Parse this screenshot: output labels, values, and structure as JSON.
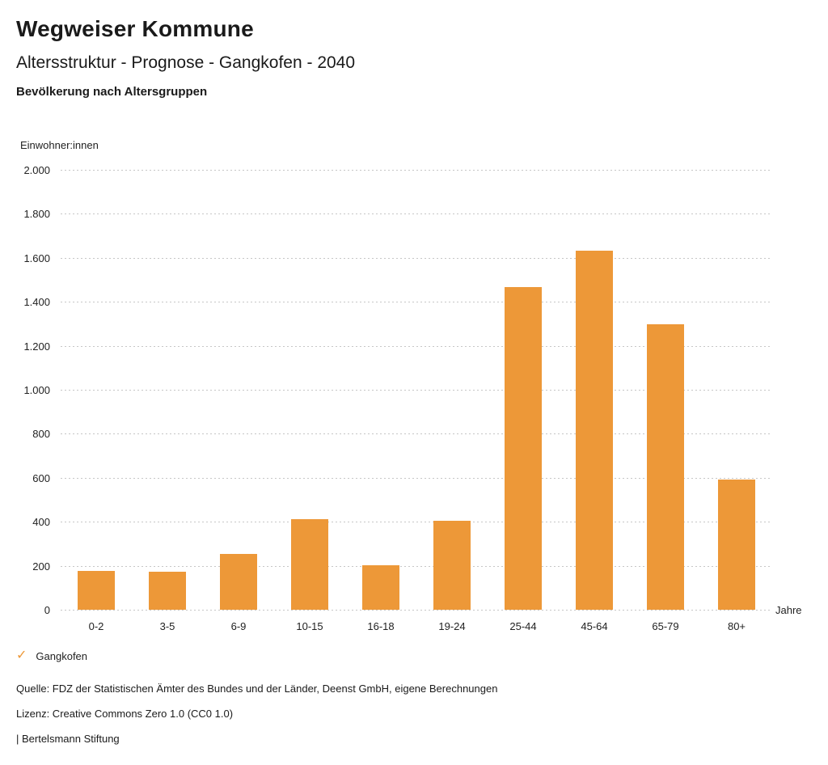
{
  "header": {
    "title": "Wegweiser Kommune",
    "subtitle": "Altersstruktur - Prognose - Gangkofen - 2040",
    "chart_heading": "Bevölkerung nach Altersgruppen"
  },
  "chart_data": {
    "type": "bar",
    "title": "Bevölkerung nach Altersgruppen",
    "categories": [
      "0-2",
      "3-5",
      "6-9",
      "10-15",
      "16-18",
      "19-24",
      "25-44",
      "45-64",
      "65-79",
      "80+"
    ],
    "series": [
      {
        "name": "Gangkofen",
        "values": [
          175,
          174,
          252,
          412,
          203,
          405,
          1466,
          1633,
          1298,
          592
        ]
      }
    ],
    "xlabel": "Jahre",
    "ylabel": "Einwohner:innen",
    "ylim": [
      0,
      2000
    ],
    "ytick_step": 200,
    "ytick_labels": [
      "0",
      "200",
      "400",
      "600",
      "800",
      "1.000",
      "1.200",
      "1.400",
      "1.600",
      "1.800",
      "2.000"
    ],
    "grid": "horizontal-dotted",
    "bar_color": "#ED9838",
    "legend_position": "bottom-left"
  },
  "legend": {
    "items": [
      {
        "label": "Gangkofen",
        "color": "#ED9838",
        "checked": true,
        "check_glyph": "✓"
      }
    ]
  },
  "footer": {
    "source": "Quelle: FDZ der Statistischen Ämter des Bundes und der Länder, Deenst GmbH, eigene Berechnungen",
    "license": "Lizenz: Creative Commons Zero 1.0 (CC0 1.0)",
    "attribution": "| Bertelsmann Stiftung"
  }
}
